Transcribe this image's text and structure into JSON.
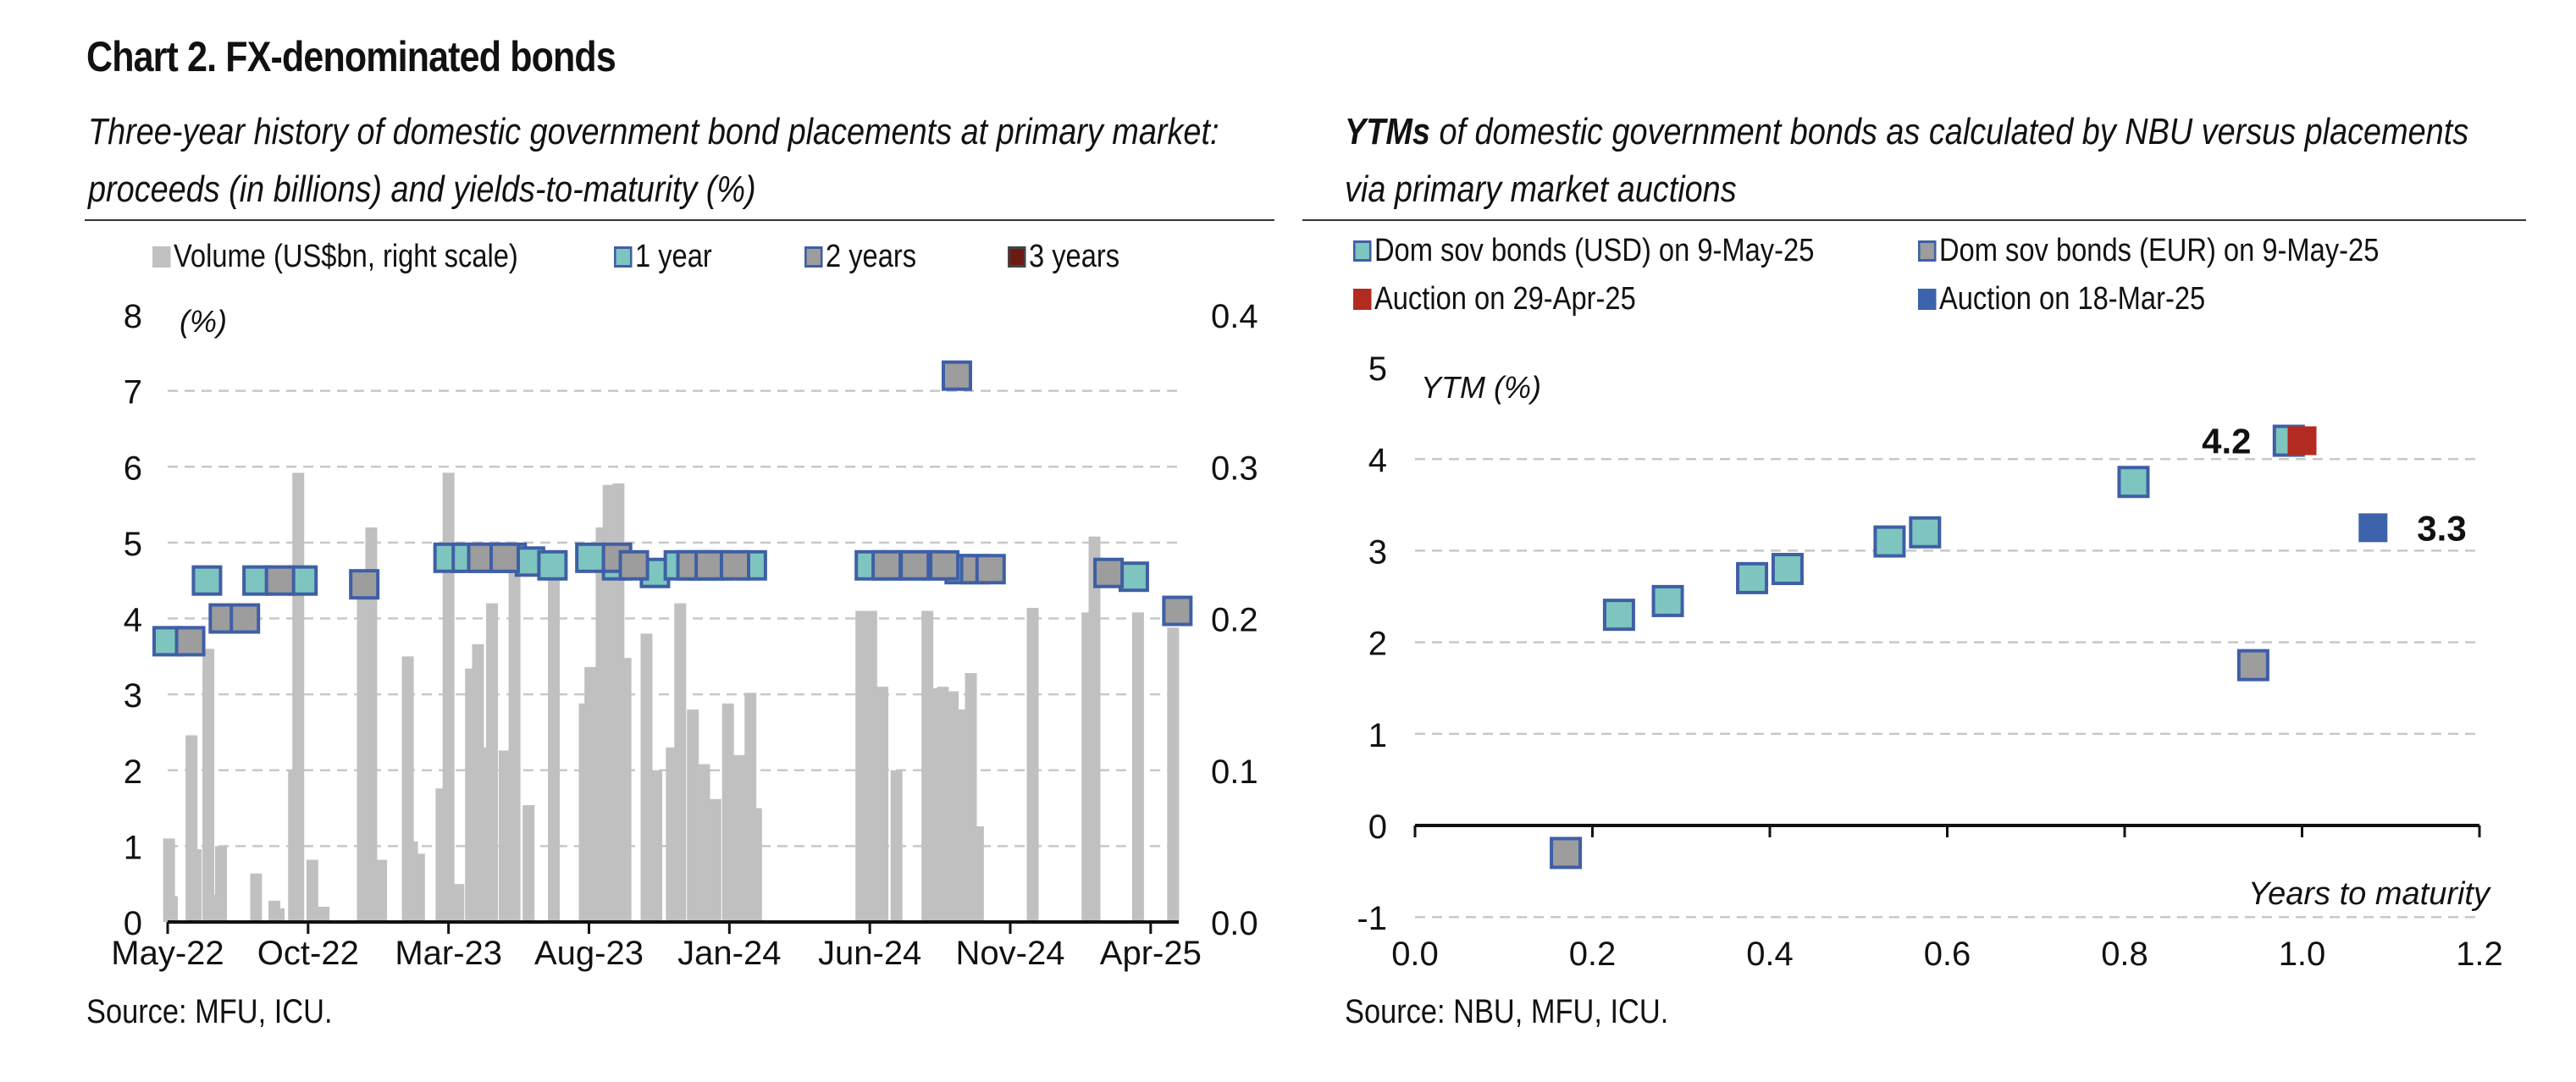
{
  "title": "Chart 2. FX-denominated bonds",
  "colors": {
    "grid": "#c8c8c8",
    "volume": "#c0c0c0",
    "teal": "#7ec5c0",
    "gray": "#9d9d9d",
    "navy_border": "#3f5fa5",
    "red": "#b32a20",
    "blue": "#3d63ad",
    "dark_red": "#6e1a14"
  },
  "left_panel": {
    "subtitle_line1": "Three-year history of domestic government bond placements at primary market:",
    "subtitle_line2": "proceeds (in billions) and yields-to-maturity (%)",
    "source": "Source: MFU, ICU.",
    "legend": [
      {
        "label": "Volume (US$bn, right scale)",
        "icon": "gray-square"
      },
      {
        "label": "1 year",
        "icon": "teal-square"
      },
      {
        "label": "2 years",
        "icon": "gray-square-bordered"
      },
      {
        "label": "3 years",
        "icon": "darkred-square"
      }
    ]
  },
  "right_panel": {
    "subtitle_line1_bold": "YTMs",
    "subtitle_line1_rest": " of domestic government bonds as calculated by NBU versus placements",
    "subtitle_line2": "via primary market auctions",
    "source": "Source: NBU, MFU, ICU.",
    "legend": [
      {
        "label": "Dom sov bonds (USD) on 9-May-25",
        "icon": "teal-square"
      },
      {
        "label": "Dom sov bonds (EUR) on 9-May-25",
        "icon": "gray-square"
      },
      {
        "label": "Auction on 29-Apr-25",
        "icon": "red-square"
      },
      {
        "label": "Auction on 18-Mar-25",
        "icon": "blue-square"
      }
    ]
  },
  "chart_data": [
    {
      "type": "bar",
      "title": "Chart 2. FX-denominated bonds",
      "ylabel": "(%)",
      "y2label": "Volume (US$bn, right scale)",
      "ylim": [
        0,
        8
      ],
      "y2lim": [
        0,
        0.4
      ],
      "yticks": [
        0,
        1,
        2,
        3,
        4,
        5,
        6,
        7,
        8
      ],
      "y2ticks": [
        "0.0",
        "0.1",
        "0.2",
        "0.3",
        "0.4"
      ],
      "xlim": [
        0,
        36
      ],
      "xticks": [
        {
          "x": 0,
          "label": "May-22"
        },
        {
          "x": 5,
          "label": "Oct-22"
        },
        {
          "x": 10,
          "label": "Mar-23"
        },
        {
          "x": 15,
          "label": "Aug-23"
        },
        {
          "x": 20,
          "label": "Jan-24"
        },
        {
          "x": 25,
          "label": "Jun-24"
        },
        {
          "x": 30,
          "label": "Nov-24"
        },
        {
          "x": 35,
          "label": "Apr-25"
        }
      ],
      "grid": true,
      "volume_bars": [
        {
          "x": 0.05,
          "v": 0.055
        },
        {
          "x": 0.15,
          "v": 0.017
        },
        {
          "x": 0.85,
          "v": 0.123
        },
        {
          "x": 1.0,
          "v": 0.048
        },
        {
          "x": 1.45,
          "v": 0.18
        },
        {
          "x": 1.6,
          "v": 0.018
        },
        {
          "x": 1.9,
          "v": 0.05
        },
        {
          "x": 3.15,
          "v": 0.032
        },
        {
          "x": 3.8,
          "v": 0.014
        },
        {
          "x": 3.95,
          "v": 0.009
        },
        {
          "x": 4.5,
          "v": 0.1
        },
        {
          "x": 4.65,
          "v": 0.296
        },
        {
          "x": 5.15,
          "v": 0.041
        },
        {
          "x": 5.55,
          "v": 0.01
        },
        {
          "x": 6.95,
          "v": 0.226
        },
        {
          "x": 7.25,
          "v": 0.26
        },
        {
          "x": 7.6,
          "v": 0.041
        },
        {
          "x": 8.55,
          "v": 0.175
        },
        {
          "x": 8.7,
          "v": 0.053
        },
        {
          "x": 8.95,
          "v": 0.045
        },
        {
          "x": 9.75,
          "v": 0.088
        },
        {
          "x": 10.0,
          "v": 0.296
        },
        {
          "x": 10.35,
          "v": 0.025
        },
        {
          "x": 10.8,
          "v": 0.167
        },
        {
          "x": 11.05,
          "v": 0.183
        },
        {
          "x": 11.35,
          "v": 0.115
        },
        {
          "x": 11.55,
          "v": 0.21
        },
        {
          "x": 12.0,
          "v": 0.113
        },
        {
          "x": 12.35,
          "v": 0.24
        },
        {
          "x": 12.85,
          "v": 0.077
        },
        {
          "x": 13.75,
          "v": 0.245
        },
        {
          "x": 14.85,
          "v": 0.144
        },
        {
          "x": 15.05,
          "v": 0.168
        },
        {
          "x": 15.45,
          "v": 0.26
        },
        {
          "x": 15.7,
          "v": 0.288
        },
        {
          "x": 16.05,
          "v": 0.289
        },
        {
          "x": 16.3,
          "v": 0.174
        },
        {
          "x": 17.05,
          "v": 0.19
        },
        {
          "x": 17.4,
          "v": 0.1
        },
        {
          "x": 17.95,
          "v": 0.115
        },
        {
          "x": 18.25,
          "v": 0.21
        },
        {
          "x": 18.7,
          "v": 0.14
        },
        {
          "x": 19.1,
          "v": 0.104
        },
        {
          "x": 19.5,
          "v": 0.081
        },
        {
          "x": 19.95,
          "v": 0.144
        },
        {
          "x": 20.35,
          "v": 0.11
        },
        {
          "x": 20.75,
          "v": 0.151
        },
        {
          "x": 20.95,
          "v": 0.075
        },
        {
          "x": 24.7,
          "v": 0.205
        },
        {
          "x": 25.05,
          "v": 0.205
        },
        {
          "x": 25.45,
          "v": 0.155
        },
        {
          "x": 25.95,
          "v": 0.1
        },
        {
          "x": 27.05,
          "v": 0.205
        },
        {
          "x": 27.25,
          "v": 0.154
        },
        {
          "x": 27.6,
          "v": 0.155
        },
        {
          "x": 27.95,
          "v": 0.152
        },
        {
          "x": 28.3,
          "v": 0.14
        },
        {
          "x": 28.6,
          "v": 0.164
        },
        {
          "x": 28.85,
          "v": 0.063
        },
        {
          "x": 30.8,
          "v": 0.207
        },
        {
          "x": 32.75,
          "v": 0.204
        },
        {
          "x": 33.0,
          "v": 0.254
        },
        {
          "x": 34.55,
          "v": 0.204
        },
        {
          "x": 35.8,
          "v": 0.194
        }
      ],
      "series": [
        {
          "name": "1 year",
          "color": "teal",
          "points": [
            {
              "x": 0.0,
              "y": 3.7
            },
            {
              "x": 1.4,
              "y": 4.5
            },
            {
              "x": 3.2,
              "y": 4.5
            },
            {
              "x": 4.8,
              "y": 4.5
            },
            {
              "x": 10.0,
              "y": 4.8
            },
            {
              "x": 10.65,
              "y": 4.8
            },
            {
              "x": 11.6,
              "y": 4.8
            },
            {
              "x": 12.25,
              "y": 4.8
            },
            {
              "x": 12.9,
              "y": 4.75
            },
            {
              "x": 13.7,
              "y": 4.7
            },
            {
              "x": 15.05,
              "y": 4.8
            },
            {
              "x": 16.0,
              "y": 4.7
            },
            {
              "x": 17.35,
              "y": 4.6
            },
            {
              "x": 18.2,
              "y": 4.7
            },
            {
              "x": 19.0,
              "y": 4.7
            },
            {
              "x": 19.6,
              "y": 4.7
            },
            {
              "x": 20.8,
              "y": 4.7
            },
            {
              "x": 25.0,
              "y": 4.7
            },
            {
              "x": 26.0,
              "y": 4.7
            },
            {
              "x": 27.1,
              "y": 4.7
            },
            {
              "x": 28.2,
              "y": 4.65
            },
            {
              "x": 34.4,
              "y": 4.55
            }
          ]
        },
        {
          "name": "2 years",
          "color": "gray",
          "points": [
            {
              "x": 0.8,
              "y": 3.7
            },
            {
              "x": 2.0,
              "y": 4.0
            },
            {
              "x": 2.75,
              "y": 4.0
            },
            {
              "x": 4.0,
              "y": 4.5
            },
            {
              "x": 7.0,
              "y": 4.45
            },
            {
              "x": 11.2,
              "y": 4.8
            },
            {
              "x": 12.0,
              "y": 4.8
            },
            {
              "x": 16.0,
              "y": 4.8
            },
            {
              "x": 16.6,
              "y": 4.7
            },
            {
              "x": 18.65,
              "y": 4.7
            },
            {
              "x": 19.3,
              "y": 4.7
            },
            {
              "x": 20.2,
              "y": 4.7
            },
            {
              "x": 25.6,
              "y": 4.7
            },
            {
              "x": 26.6,
              "y": 4.7
            },
            {
              "x": 27.65,
              "y": 4.7
            },
            {
              "x": 28.75,
              "y": 4.65
            },
            {
              "x": 29.3,
              "y": 4.65
            },
            {
              "x": 33.5,
              "y": 4.6
            },
            {
              "x": 28.1,
              "y": 7.2
            },
            {
              "x": 35.95,
              "y": 4.1
            }
          ]
        }
      ]
    },
    {
      "type": "scatter",
      "ylabel": "YTM (%)",
      "xlabel": "Years to maturity",
      "xlim": [
        0,
        1.2
      ],
      "ylim": [
        -1,
        5
      ],
      "xticks": [
        "0.0",
        "0.2",
        "0.4",
        "0.6",
        "0.8",
        "1.0",
        "1.2"
      ],
      "yticks": [
        "-1",
        "0",
        "1",
        "2",
        "3",
        "4",
        "5"
      ],
      "grid": true,
      "series": [
        {
          "name": "Dom sov bonds (USD) on 9-May-25",
          "color": "teal",
          "points": [
            {
              "x": 0.23,
              "y": 2.3
            },
            {
              "x": 0.285,
              "y": 2.45
            },
            {
              "x": 0.38,
              "y": 2.7
            },
            {
              "x": 0.42,
              "y": 2.8
            },
            {
              "x": 0.535,
              "y": 3.1
            },
            {
              "x": 0.575,
              "y": 3.2
            },
            {
              "x": 0.81,
              "y": 3.75
            },
            {
              "x": 0.985,
              "y": 4.2
            }
          ]
        },
        {
          "name": "Dom sov bonds (EUR) on 9-May-25",
          "color": "gray",
          "points": [
            {
              "x": 0.17,
              "y": -0.3
            },
            {
              "x": 0.945,
              "y": 1.75
            }
          ]
        },
        {
          "name": "Auction on 29-Apr-25",
          "color": "red",
          "points": [
            {
              "x": 1.0,
              "y": 4.2,
              "label": "4.2"
            }
          ]
        },
        {
          "name": "Auction on 18-Mar-25",
          "color": "blue",
          "points": [
            {
              "x": 1.08,
              "y": 3.25,
              "label": "3.3"
            }
          ]
        }
      ]
    }
  ]
}
